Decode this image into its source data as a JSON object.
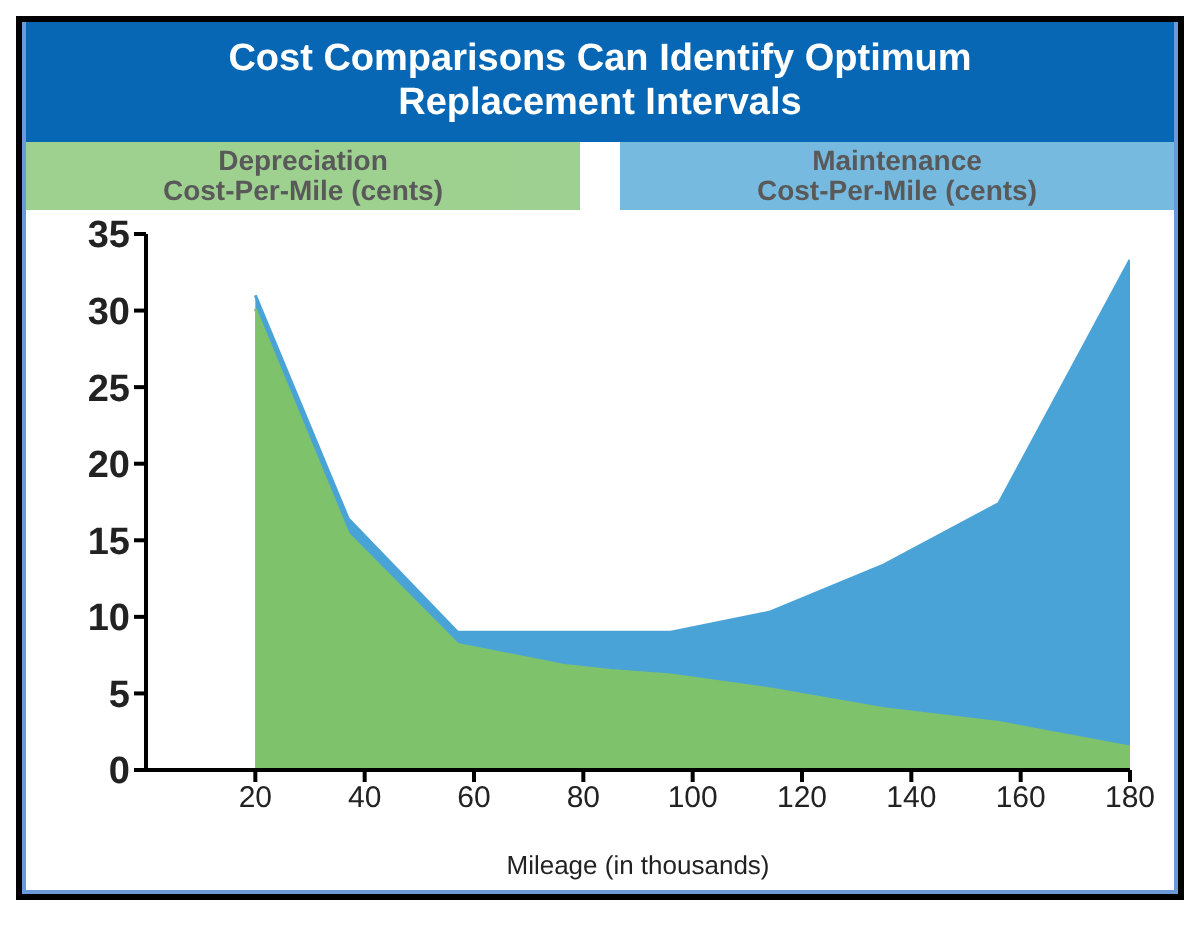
{
  "chart_data": {
    "type": "area",
    "title": "Cost Comparisons Can Identify Optimum Replacement Intervals",
    "xlabel": "Mileage (in thousands)",
    "x": [
      20,
      37,
      57,
      77,
      85,
      96,
      114,
      135,
      156,
      180
    ],
    "series": [
      {
        "name": "Maintenance\nCost-Per-Mile (cents)",
        "color": "#4aa3d6",
        "values": [
          31,
          16.4,
          9,
          9,
          9,
          9,
          10.3,
          13.4,
          17.4,
          33.3
        ]
      },
      {
        "name": "Depreciation\nCost-Per-Mile (cents)",
        "color": "#7ec26c",
        "values": [
          30.1,
          15.4,
          8.2,
          6.8,
          6.5,
          6.2,
          5.3,
          4,
          3.1,
          1.5
        ]
      }
    ],
    "xlim": [
      0,
      180
    ],
    "xticks": [
      20,
      40,
      60,
      80,
      100,
      120,
      140,
      160,
      180
    ],
    "ylim": [
      0,
      35
    ],
    "yticks": [
      0,
      5,
      10,
      15,
      20,
      25,
      30,
      35
    ],
    "grid": false,
    "legend": "top"
  }
}
